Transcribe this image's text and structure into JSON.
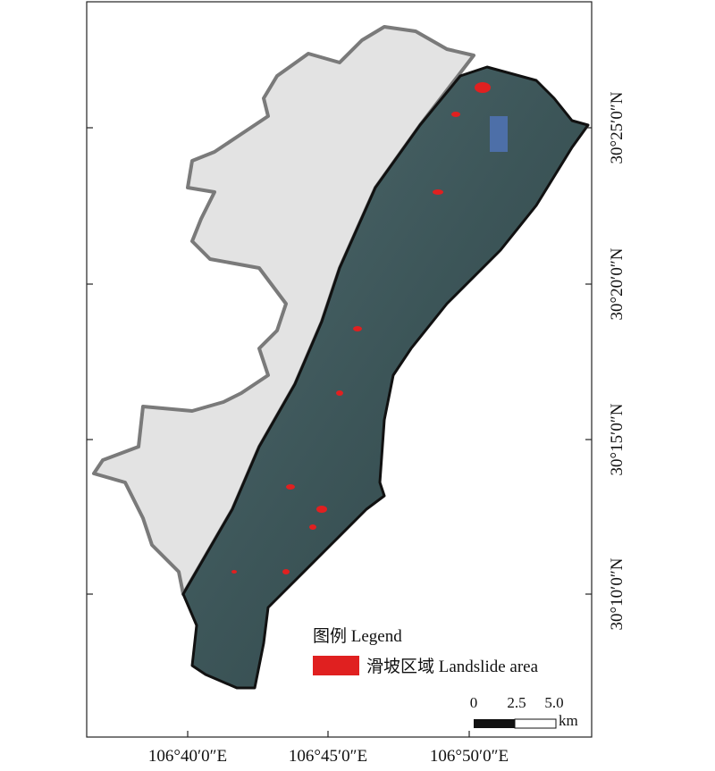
{
  "map": {
    "lon_ticks": [
      "106°40′0″E",
      "106°45′0″E",
      "106°50′0″E"
    ],
    "lat_ticks": [
      "30°25′0″N",
      "30°20′0″N",
      "30°15′0″N",
      "30°10′0″N"
    ],
    "legend": {
      "title": "图例 Legend",
      "items": [
        {
          "label": "滑坡区域 Landslide area"
        }
      ]
    },
    "scale_bar": {
      "labels": [
        "0",
        "2.5",
        "5.0"
      ],
      "unit": "km"
    }
  }
}
